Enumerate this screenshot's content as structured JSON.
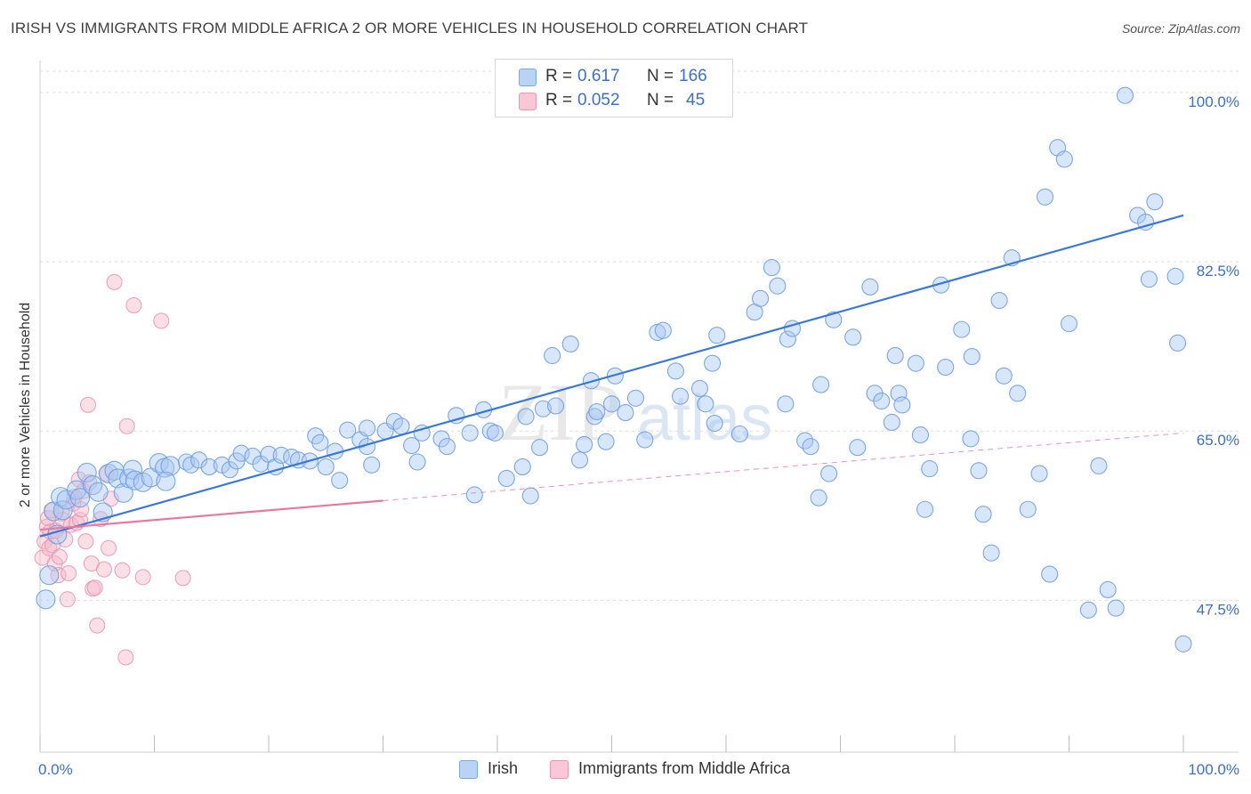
{
  "header": {
    "title": "IRISH VS IMMIGRANTS FROM MIDDLE AFRICA 2 OR MORE VEHICLES IN HOUSEHOLD CORRELATION CHART",
    "source": "Source: ZipAtlas.com"
  },
  "legend": {
    "rows": [
      {
        "r_label": "R =",
        "r_value": "0.617",
        "n_label": "N =",
        "n_value": "166",
        "color": "#a9c8f2"
      },
      {
        "r_label": "R =",
        "r_value": "0.052",
        "n_label": "N =",
        "n_value": "45",
        "color": "#f5b8c9"
      }
    ]
  },
  "bottom_legend": {
    "irish": "Irish",
    "middle_africa": "Immigrants from Middle Africa"
  },
  "watermark": {
    "zip": "ZIP",
    "atlas": "atlas"
  },
  "chart_data": {
    "type": "scatter",
    "title": "IRISH VS IMMIGRANTS FROM MIDDLE AFRICA 2 OR MORE VEHICLES IN HOUSEHOLD CORRELATION CHART",
    "xlabel": "",
    "ylabel": "2 or more Vehicles in Household",
    "x_tick_labels": [
      "0.0%",
      "100.0%"
    ],
    "y_tick_labels": [
      "47.5%",
      "65.0%",
      "82.5%",
      "100.0%"
    ],
    "y_ticks": [
      47.5,
      65.0,
      82.5,
      100.0
    ],
    "xlim": [
      0,
      100
    ],
    "ylim": [
      31.8,
      102.2
    ],
    "grid": true,
    "legend_placement": "top-center",
    "colors": {
      "irish": "#3a78d6",
      "irish_fill": "#a9c8f2",
      "africa": "#e8799c",
      "africa_fill": "#f5b8c9"
    },
    "series": [
      {
        "name": "Irish",
        "R": 0.617,
        "N": 166,
        "trend": {
          "x": [
            0,
            100
          ],
          "y": [
            54.1,
            87.3
          ]
        },
        "points": [
          [
            0.5,
            47.6
          ],
          [
            0.8,
            50.1
          ],
          [
            1.2,
            56.7
          ],
          [
            1.5,
            54.3
          ],
          [
            1.8,
            58.2
          ],
          [
            2.0,
            56.8
          ],
          [
            2.3,
            57.9
          ],
          [
            3.2,
            58.9
          ],
          [
            3.5,
            58.1
          ],
          [
            4.1,
            60.7
          ],
          [
            4.6,
            59.4
          ],
          [
            5.1,
            58.7
          ],
          [
            5.5,
            56.6
          ],
          [
            6.0,
            60.6
          ],
          [
            6.5,
            60.9
          ],
          [
            6.8,
            60.1
          ],
          [
            7.3,
            58.6
          ],
          [
            7.8,
            60.1
          ],
          [
            8.1,
            61.0
          ],
          [
            8.3,
            59.9
          ],
          [
            9.0,
            59.7
          ],
          [
            9.7,
            60.2
          ],
          [
            10.4,
            61.7
          ],
          [
            10.9,
            61.2
          ],
          [
            11.4,
            61.4
          ],
          [
            11.0,
            59.8
          ],
          [
            12.8,
            61.8
          ],
          [
            13.2,
            61.5
          ],
          [
            13.9,
            62.0
          ],
          [
            14.8,
            61.3
          ],
          [
            15.9,
            61.5
          ],
          [
            16.6,
            61.0
          ],
          [
            17.2,
            61.9
          ],
          [
            17.6,
            62.7
          ],
          [
            18.6,
            62.4
          ],
          [
            19.3,
            61.6
          ],
          [
            20.0,
            62.6
          ],
          [
            20.6,
            61.3
          ],
          [
            21.1,
            62.5
          ],
          [
            22.0,
            62.3
          ],
          [
            22.6,
            62.0
          ],
          [
            23.6,
            61.9
          ],
          [
            24.1,
            64.5
          ],
          [
            24.5,
            63.8
          ],
          [
            25.0,
            61.3
          ],
          [
            25.8,
            62.9
          ],
          [
            26.2,
            59.9
          ],
          [
            26.9,
            65.1
          ],
          [
            28.0,
            64.1
          ],
          [
            28.6,
            63.4
          ],
          [
            28.6,
            65.3
          ],
          [
            29.0,
            61.5
          ],
          [
            30.2,
            65.0
          ],
          [
            31.0,
            66.0
          ],
          [
            31.6,
            65.5
          ],
          [
            32.5,
            63.5
          ],
          [
            33.0,
            61.8
          ],
          [
            33.4,
            64.8
          ],
          [
            35.1,
            64.2
          ],
          [
            35.6,
            63.4
          ],
          [
            36.4,
            66.6
          ],
          [
            37.6,
            64.8
          ],
          [
            38.0,
            58.4
          ],
          [
            38.8,
            67.2
          ],
          [
            39.4,
            65.0
          ],
          [
            39.8,
            64.8
          ],
          [
            40.8,
            60.1
          ],
          [
            42.5,
            66.5
          ],
          [
            42.2,
            61.3
          ],
          [
            42.9,
            58.3
          ],
          [
            43.7,
            63.3
          ],
          [
            44.0,
            67.3
          ],
          [
            44.8,
            72.8
          ],
          [
            45.1,
            67.6
          ],
          [
            46.4,
            74.0
          ],
          [
            47.2,
            62.0
          ],
          [
            47.6,
            63.6
          ],
          [
            48.2,
            70.2
          ],
          [
            48.5,
            66.5
          ],
          [
            48.7,
            67.0
          ],
          [
            49.5,
            63.9
          ],
          [
            50.0,
            67.8
          ],
          [
            50.3,
            70.7
          ],
          [
            51.2,
            66.9
          ],
          [
            52.1,
            68.4
          ],
          [
            52.9,
            64.1
          ],
          [
            54.0,
            75.2
          ],
          [
            54.5,
            75.4
          ],
          [
            55.6,
            71.2
          ],
          [
            56.0,
            68.6
          ],
          [
            57.7,
            69.4
          ],
          [
            58.2,
            67.8
          ],
          [
            58.8,
            72.0
          ],
          [
            59.2,
            74.9
          ],
          [
            59.0,
            65.8
          ],
          [
            61.2,
            64.7
          ],
          [
            62.5,
            77.3
          ],
          [
            63.0,
            78.7
          ],
          [
            64.0,
            81.9
          ],
          [
            64.5,
            80.0
          ],
          [
            65.2,
            67.8
          ],
          [
            65.4,
            74.5
          ],
          [
            65.8,
            75.6
          ],
          [
            66.9,
            64.0
          ],
          [
            67.4,
            63.4
          ],
          [
            68.1,
            58.1
          ],
          [
            68.3,
            69.8
          ],
          [
            69.4,
            76.5
          ],
          [
            69.0,
            60.6
          ],
          [
            71.1,
            74.7
          ],
          [
            71.5,
            63.3
          ],
          [
            72.6,
            79.9
          ],
          [
            73.0,
            68.9
          ],
          [
            73.6,
            68.1
          ],
          [
            74.5,
            65.9
          ],
          [
            74.8,
            72.8
          ],
          [
            75.1,
            68.9
          ],
          [
            75.4,
            67.7
          ],
          [
            76.6,
            72.0
          ],
          [
            77.0,
            64.6
          ],
          [
            77.4,
            56.9
          ],
          [
            77.8,
            61.1
          ],
          [
            78.8,
            80.1
          ],
          [
            79.2,
            71.6
          ],
          [
            80.6,
            75.5
          ],
          [
            81.5,
            72.7
          ],
          [
            81.4,
            64.2
          ],
          [
            82.1,
            60.9
          ],
          [
            82.5,
            56.4
          ],
          [
            83.2,
            52.4
          ],
          [
            83.9,
            78.5
          ],
          [
            84.3,
            70.7
          ],
          [
            85.0,
            82.9
          ],
          [
            85.5,
            68.9
          ],
          [
            86.4,
            56.9
          ],
          [
            87.4,
            60.6
          ],
          [
            87.9,
            89.2
          ],
          [
            88.3,
            50.2
          ],
          [
            89.0,
            94.3
          ],
          [
            89.6,
            93.1
          ],
          [
            90.0,
            76.1
          ],
          [
            91.7,
            46.5
          ],
          [
            92.6,
            61.4
          ],
          [
            93.4,
            48.6
          ],
          [
            94.1,
            46.7
          ],
          [
            94.9,
            99.7
          ],
          [
            96.0,
            87.3
          ],
          [
            96.7,
            86.6
          ],
          [
            97.0,
            80.7
          ],
          [
            97.5,
            88.7
          ],
          [
            99.3,
            81.0
          ],
          [
            99.5,
            74.1
          ],
          [
            100.0,
            43.0
          ]
        ]
      },
      {
        "name": "Immigrants from Middle Africa",
        "R": 0.052,
        "N": 45,
        "trend": {
          "x": [
            0,
            30
          ],
          "y": [
            54.8,
            57.8
          ]
        },
        "trend_dashed": {
          "x": [
            30,
            100
          ],
          "y": [
            57.8,
            64.8
          ]
        },
        "points": [
          [
            0.2,
            51.9
          ],
          [
            0.4,
            53.6
          ],
          [
            0.6,
            55.1
          ],
          [
            0.7,
            56.0
          ],
          [
            0.8,
            52.9
          ],
          [
            0.9,
            54.6
          ],
          [
            1.0,
            56.8
          ],
          [
            1.1,
            53.2
          ],
          [
            1.3,
            51.3
          ],
          [
            1.4,
            54.7
          ],
          [
            1.6,
            50.1
          ],
          [
            1.7,
            52.0
          ],
          [
            1.9,
            56.5
          ],
          [
            2.0,
            55.8
          ],
          [
            2.2,
            53.8
          ],
          [
            2.4,
            47.6
          ],
          [
            2.5,
            50.3
          ],
          [
            2.7,
            55.3
          ],
          [
            2.9,
            57.5
          ],
          [
            3.0,
            58.2
          ],
          [
            3.2,
            55.5
          ],
          [
            3.4,
            60.0
          ],
          [
            3.5,
            55.8
          ],
          [
            3.6,
            56.9
          ],
          [
            3.8,
            58.8
          ],
          [
            4.0,
            53.6
          ],
          [
            4.2,
            67.7
          ],
          [
            4.3,
            59.7
          ],
          [
            4.5,
            51.3
          ],
          [
            4.6,
            48.7
          ],
          [
            4.8,
            48.8
          ],
          [
            5.0,
            44.9
          ],
          [
            5.3,
            55.9
          ],
          [
            5.6,
            50.7
          ],
          [
            5.8,
            60.6
          ],
          [
            6.0,
            52.9
          ],
          [
            6.2,
            58.0
          ],
          [
            6.5,
            80.4
          ],
          [
            7.2,
            50.6
          ],
          [
            7.5,
            41.6
          ],
          [
            7.6,
            65.5
          ],
          [
            8.2,
            78.0
          ],
          [
            9.0,
            49.9
          ],
          [
            10.6,
            76.4
          ],
          [
            12.5,
            49.8
          ]
        ]
      }
    ]
  }
}
